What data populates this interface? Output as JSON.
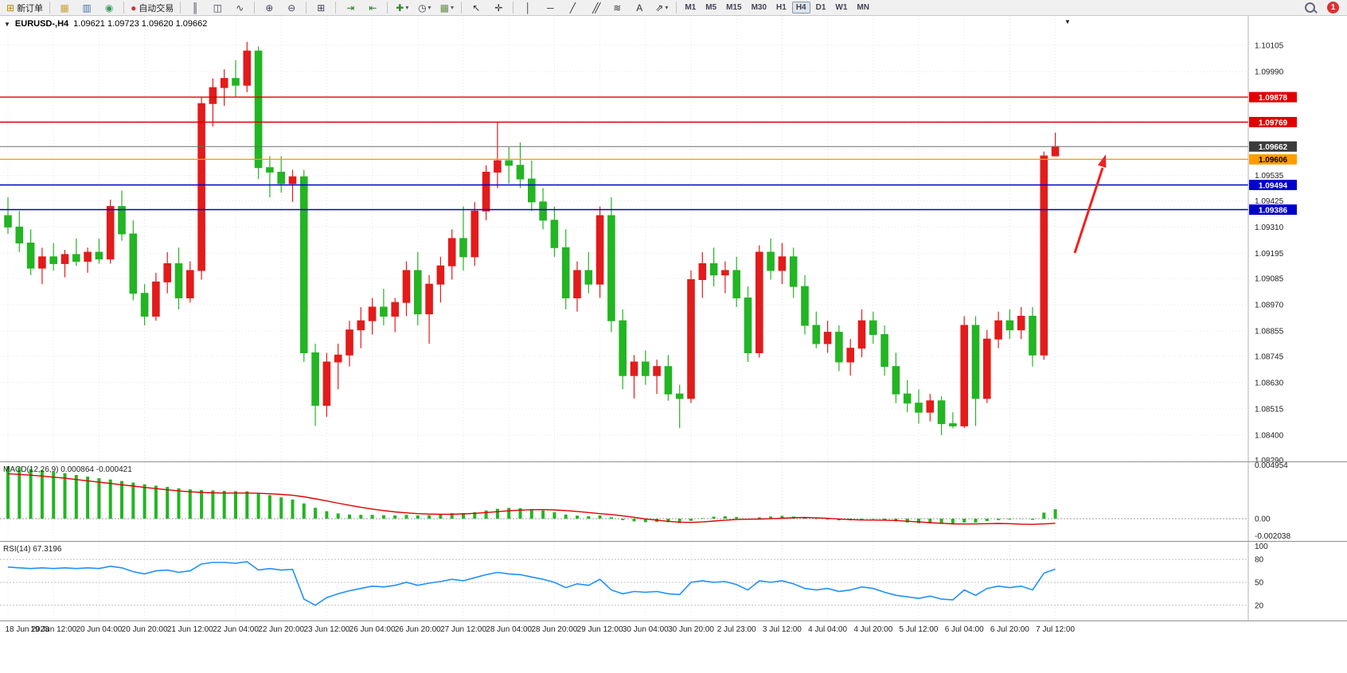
{
  "toolbar": {
    "notification_count": "1",
    "timeframes": [
      "M1",
      "M5",
      "M15",
      "M30",
      "H1",
      "H4",
      "D1",
      "W1",
      "MN"
    ],
    "active_timeframe": "H4",
    "groups": [
      {
        "items": [
          {
            "name": "new-order-button",
            "icon": "new-order-icon",
            "label": "新订单"
          }
        ]
      },
      {
        "items": [
          {
            "name": "charts-button",
            "icon": "new-chart-icon"
          },
          {
            "name": "profiles-button",
            "icon": "profiles-icon"
          },
          {
            "name": "data-window-button",
            "icon": "data-window-icon"
          }
        ]
      },
      {
        "items": [
          {
            "name": "autotrading-button",
            "icon": "autotrading-icon",
            "label": "自动交易"
          }
        ]
      },
      {
        "items": [
          {
            "name": "bar-chart-button",
            "icon": "bar-chart-icon"
          },
          {
            "name": "candlestick-chart-button",
            "icon": "candlestick-chart-icon"
          },
          {
            "name": "line-chart-button",
            "icon": "line-chart-icon"
          }
        ]
      },
      {
        "items": [
          {
            "name": "zoom-in-button",
            "icon": "zoom-in-icon"
          },
          {
            "name": "zoom-out-button",
            "icon": "zoom-out-icon"
          }
        ]
      },
      {
        "items": [
          {
            "name": "tile-windows-button",
            "icon": "tile-windows-icon"
          }
        ]
      },
      {
        "items": [
          {
            "name": "auto-scroll-button",
            "icon": "auto-scroll-icon"
          },
          {
            "name": "chart-shift-button",
            "icon": "chart-shift-icon"
          }
        ]
      },
      {
        "items": [
          {
            "name": "indicators-button",
            "icon": "indicators-icon",
            "caret": true
          },
          {
            "name": "periods-button",
            "icon": "periods-icon",
            "caret": true
          },
          {
            "name": "templates-button",
            "icon": "templates-icon",
            "caret": true
          }
        ]
      },
      {
        "items": [
          {
            "name": "cursor-button",
            "icon": "cursor-icon"
          },
          {
            "name": "crosshair-button",
            "icon": "crosshair-icon"
          }
        ]
      },
      {
        "items": [
          {
            "name": "vertical-line-button",
            "icon": "vertical-line-icon"
          },
          {
            "name": "horizontal-line-button",
            "icon": "horizontal-line-icon"
          },
          {
            "name": "trendline-button",
            "icon": "trendline-icon"
          },
          {
            "name": "channel-button",
            "icon": "channel-icon"
          },
          {
            "name": "fibonacci-button",
            "icon": "fibonacci-icon"
          },
          {
            "name": "text-button",
            "icon": "text-icon"
          },
          {
            "name": "arrows-button",
            "icon": "arrows-icon",
            "caret": true
          }
        ]
      }
    ]
  },
  "chart": {
    "title": "EURUSD-,H4",
    "ohlc": "1.09621 1.09723 1.09620 1.09662",
    "colors": {
      "up": "#e31b1b",
      "down": "#23b523",
      "arrow": "#f22020",
      "grid": "#e6e6e6"
    },
    "levels": [
      {
        "price": "1.09878",
        "value": 1.09878,
        "line": "#e00000",
        "badge": "#e00000",
        "text": "#ffffff",
        "width": 1.4,
        "name": "resistance-line-1"
      },
      {
        "price": "1.09769",
        "value": 1.09769,
        "line": "#e00000",
        "badge": "#e00000",
        "text": "#ffffff",
        "width": 1.4,
        "name": "resistance-line-2"
      },
      {
        "price": "1.09662",
        "value": 1.09662,
        "line": "#6b6b6b",
        "badge": "#3c3c3c",
        "text": "#ffffff",
        "width": 1,
        "name": "current-price-line"
      },
      {
        "price": "1.09606",
        "value": 1.09606,
        "line": "#ff9d00",
        "badge": "#ff9d00",
        "text": "#000000",
        "width": 1.4,
        "name": "pivot-line-orange"
      },
      {
        "price": "1.09494",
        "value": 1.09494,
        "line": "#0000cc",
        "badge": "#0000cc",
        "text": "#ffffff",
        "width": 1.4,
        "name": "support-line-1"
      },
      {
        "price": "1.09386",
        "value": 1.09386,
        "line": "#0000cc",
        "badge": "#0000cc",
        "text": "#ffffff",
        "width": 1.4,
        "name": "support-line-2"
      }
    ],
    "price_axis": {
      "ticks": [
        {
          "v": 1.10105,
          "t": "1.10105",
          "show": true
        },
        {
          "v": 1.0999,
          "t": "1.09990",
          "show": true
        },
        {
          "v": 1.0988,
          "t": "1.09880",
          "show": false
        },
        {
          "v": 1.09765,
          "t": "1.09765",
          "show": false
        },
        {
          "v": 1.0965,
          "t": "1.09650",
          "show": false
        },
        {
          "v": 1.09535,
          "t": "1.09535",
          "show": true
        },
        {
          "v": 1.09425,
          "t": "1.09425",
          "show": true
        },
        {
          "v": 1.0931,
          "t": "1.09310",
          "show": true
        },
        {
          "v": 1.09195,
          "t": "1.09195",
          "show": true
        },
        {
          "v": 1.09085,
          "t": "1.09085",
          "show": true
        },
        {
          "v": 1.0897,
          "t": "1.08970",
          "show": true
        },
        {
          "v": 1.08855,
          "t": "1.08855",
          "show": true
        },
        {
          "v": 1.08745,
          "t": "1.08745",
          "show": true
        },
        {
          "v": 1.0863,
          "t": "1.08630",
          "show": true
        },
        {
          "v": 1.08515,
          "t": "1.08515",
          "show": true
        },
        {
          "v": 1.084,
          "t": "1.08400",
          "show": true
        },
        {
          "v": 1.0829,
          "t": "1.08290",
          "show": true
        }
      ]
    },
    "time_axis": [
      "18 Jun 2023",
      "19 Jun 12:00",
      "20 Jun 04:00",
      "20 Jun 20:00",
      "21 Jun 12:00",
      "22 Jun 04:00",
      "22 Jun 20:00",
      "23 Jun 12:00",
      "26 Jun 04:00",
      "26 Jun 20:00",
      "27 Jun 12:00",
      "28 Jun 04:00",
      "28 Jun 20:00",
      "29 Jun 12:00",
      "30 Jun 04:00",
      "30 Jun 20:00",
      "2 Jul 23:00",
      "3 Jul 12:00",
      "4 Jul 04:00",
      "4 Jul 20:00",
      "5 Jul 12:00",
      "6 Jul 04:00",
      "6 Jul 20:00",
      "7 Jul 12:00"
    ]
  },
  "chart_data": {
    "type": "candlestick",
    "symbol_timeframe": "EURUSD-,H4",
    "current_bar_ohlc": [
      1.09621,
      1.09723,
      1.0962,
      1.09662
    ],
    "candles_ohlc": [
      [
        1.0936,
        1.0944,
        1.0928,
        1.0931
      ],
      [
        1.0931,
        1.0938,
        1.092,
        1.0924
      ],
      [
        1.0924,
        1.093,
        1.091,
        1.0913
      ],
      [
        1.0913,
        1.0922,
        1.0906,
        1.0918
      ],
      [
        1.0918,
        1.0924,
        1.0912,
        1.0915
      ],
      [
        1.0915,
        1.0921,
        1.0909,
        1.0919
      ],
      [
        1.0919,
        1.0926,
        1.0914,
        1.0916
      ],
      [
        1.0916,
        1.0922,
        1.0911,
        1.092
      ],
      [
        1.092,
        1.0926,
        1.0915,
        1.0917
      ],
      [
        1.0917,
        1.0943,
        1.0915,
        1.094
      ],
      [
        1.094,
        1.0947,
        1.0925,
        1.0928
      ],
      [
        1.0928,
        1.0934,
        1.0899,
        1.0902
      ],
      [
        1.0902,
        1.0906,
        1.0888,
        1.0892
      ],
      [
        1.0892,
        1.0911,
        1.089,
        1.0907
      ],
      [
        1.0907,
        1.092,
        1.0902,
        1.0915
      ],
      [
        1.0915,
        1.0922,
        1.0895,
        1.09
      ],
      [
        1.09,
        1.0916,
        1.0898,
        1.0912
      ],
      [
        1.0912,
        1.0988,
        1.0908,
        1.0985
      ],
      [
        1.0985,
        1.0996,
        1.0975,
        1.0992
      ],
      [
        1.0992,
        1.1,
        1.0984,
        1.0996
      ],
      [
        1.0996,
        1.1004,
        1.0988,
        1.0993
      ],
      [
        1.0993,
        1.1012,
        1.099,
        1.1008
      ],
      [
        1.1008,
        1.101,
        1.0952,
        1.0957
      ],
      [
        1.0957,
        1.0962,
        1.0944,
        1.0955
      ],
      [
        1.0955,
        1.0962,
        1.0946,
        1.095
      ],
      [
        1.095,
        1.0956,
        1.0942,
        1.0953
      ],
      [
        1.0953,
        1.0956,
        1.0872,
        1.0876
      ],
      [
        1.0876,
        1.088,
        1.0844,
        1.0853
      ],
      [
        1.0853,
        1.0876,
        1.0848,
        1.0872
      ],
      [
        1.0872,
        1.088,
        1.086,
        1.0875
      ],
      [
        1.0875,
        1.089,
        1.087,
        1.0886
      ],
      [
        1.0886,
        1.0896,
        1.0878,
        1.089
      ],
      [
        1.089,
        1.09,
        1.0884,
        1.0896
      ],
      [
        1.0896,
        1.0904,
        1.0888,
        1.0892
      ],
      [
        1.0892,
        1.09,
        1.0885,
        1.0898
      ],
      [
        1.0898,
        1.0916,
        1.0892,
        1.0912
      ],
      [
        1.0912,
        1.092,
        1.0888,
        1.0893
      ],
      [
        1.0893,
        1.091,
        1.088,
        1.0906
      ],
      [
        1.0906,
        1.0918,
        1.0898,
        1.0914
      ],
      [
        1.0914,
        1.093,
        1.0908,
        1.0926
      ],
      [
        1.0926,
        1.094,
        1.0912,
        1.0918
      ],
      [
        1.0918,
        1.0942,
        1.0914,
        1.0938
      ],
      [
        1.0938,
        1.0958,
        1.0934,
        1.0955
      ],
      [
        1.0955,
        1.0977,
        1.0948,
        1.096
      ],
      [
        1.096,
        1.0966,
        1.095,
        1.0958
      ],
      [
        1.0958,
        1.0968,
        1.0948,
        1.0952
      ],
      [
        1.0952,
        1.096,
        1.0938,
        1.0942
      ],
      [
        1.0942,
        1.0948,
        1.093,
        1.0934
      ],
      [
        1.0934,
        1.094,
        1.0918,
        1.0922
      ],
      [
        1.0922,
        1.093,
        1.0895,
        1.09
      ],
      [
        1.09,
        1.0916,
        1.0894,
        1.0912
      ],
      [
        1.0912,
        1.092,
        1.0902,
        1.0906
      ],
      [
        1.0906,
        1.094,
        1.09,
        1.0936
      ],
      [
        1.0936,
        1.0944,
        1.0885,
        1.089
      ],
      [
        1.089,
        1.0895,
        1.086,
        1.0866
      ],
      [
        1.0866,
        1.0875,
        1.0856,
        1.0872
      ],
      [
        1.0872,
        1.0877,
        1.0862,
        1.0866
      ],
      [
        1.0866,
        1.0873,
        1.0858,
        1.087
      ],
      [
        1.087,
        1.0875,
        1.0855,
        1.0858
      ],
      [
        1.0858,
        1.0862,
        1.0843,
        1.0856
      ],
      [
        1.0856,
        1.0912,
        1.0854,
        1.0908
      ],
      [
        1.0908,
        1.092,
        1.09,
        1.0915
      ],
      [
        1.0915,
        1.0922,
        1.0905,
        1.091
      ],
      [
        1.091,
        1.0916,
        1.0902,
        1.0912
      ],
      [
        1.0912,
        1.0918,
        1.0896,
        1.09
      ],
      [
        1.09,
        1.0905,
        1.0872,
        1.0876
      ],
      [
        1.0876,
        1.0923,
        1.0874,
        1.092
      ],
      [
        1.092,
        1.0926,
        1.0908,
        1.0912
      ],
      [
        1.0912,
        1.0924,
        1.0906,
        1.0918
      ],
      [
        1.0918,
        1.0922,
        1.09,
        1.0905
      ],
      [
        1.0905,
        1.091,
        1.0884,
        1.0888
      ],
      [
        1.0888,
        1.0894,
        1.0878,
        1.088
      ],
      [
        1.088,
        1.089,
        1.0876,
        1.0885
      ],
      [
        1.0885,
        1.0888,
        1.0868,
        1.0872
      ],
      [
        1.0872,
        1.0882,
        1.0866,
        1.0878
      ],
      [
        1.0878,
        1.0895,
        1.0874,
        1.089
      ],
      [
        1.089,
        1.0894,
        1.088,
        1.0884
      ],
      [
        1.0884,
        1.0888,
        1.0866,
        1.087
      ],
      [
        1.087,
        1.0876,
        1.0854,
        1.0858
      ],
      [
        1.0858,
        1.0864,
        1.085,
        1.0854
      ],
      [
        1.0854,
        1.086,
        1.0845,
        1.085
      ],
      [
        1.085,
        1.0858,
        1.0846,
        1.0855
      ],
      [
        1.0855,
        1.0857,
        1.084,
        1.0845
      ],
      [
        1.0845,
        1.085,
        1.0843,
        1.0844
      ],
      [
        1.0844,
        1.0892,
        1.0843,
        1.0888
      ],
      [
        1.0888,
        1.0892,
        1.0844,
        1.0856
      ],
      [
        1.0856,
        1.0886,
        1.0854,
        1.0882
      ],
      [
        1.0882,
        1.0894,
        1.0878,
        1.089
      ],
      [
        1.089,
        1.0895,
        1.0882,
        1.0886
      ],
      [
        1.0886,
        1.0896,
        1.0882,
        1.0892
      ],
      [
        1.0892,
        1.0896,
        1.087,
        1.0875
      ],
      [
        1.0875,
        1.0964,
        1.0873,
        1.09621
      ],
      [
        1.09621,
        1.09723,
        1.0962,
        1.09662
      ]
    ],
    "macd": {
      "label": "MACD(12,26,9)",
      "main_value": "0.000864",
      "signal_value": "-0.000421",
      "axis_labels": [
        "0.004954",
        "0.00",
        "-0.002038"
      ],
      "histogram": [
        0.0048,
        0.00468,
        0.00455,
        0.00442,
        0.00428,
        0.00415,
        0.004,
        0.00385,
        0.0037,
        0.00358,
        0.00345,
        0.0033,
        0.00315,
        0.00302,
        0.0029,
        0.00278,
        0.00268,
        0.00262,
        0.00258,
        0.00255,
        0.00252,
        0.0025,
        0.00235,
        0.00215,
        0.00195,
        0.00175,
        0.0014,
        0.001,
        0.00068,
        0.00048,
        0.00038,
        0.00035,
        0.00035,
        0.00032,
        0.0003,
        0.00035,
        0.0003,
        0.00032,
        0.0004,
        0.0005,
        0.00052,
        0.0006,
        0.00075,
        0.0009,
        0.00098,
        0.00096,
        0.00088,
        0.00075,
        0.00058,
        0.00038,
        0.00028,
        0.00022,
        0.0003,
        0.00012,
        -0.00012,
        -0.00025,
        -0.00032,
        -0.0003,
        -0.00032,
        -0.0004,
        -0.0002,
        5e-05,
        0.00018,
        0.00022,
        0.00015,
        0.0,
        0.00012,
        0.0002,
        0.00026,
        0.0002,
        8e-05,
        -5e-05,
        -8e-05,
        -0.00015,
        -0.00015,
        -8e-05,
        -5e-05,
        -0.00015,
        -0.00025,
        -0.00035,
        -0.00042,
        -0.00042,
        -0.00048,
        -0.00052,
        -0.00035,
        -0.00035,
        -0.00022,
        -0.00012,
        -8e-05,
        -2e-05,
        -0.0001,
        0.00055,
        0.000864
      ],
      "signal": [
        0.0041,
        0.00405,
        0.00398,
        0.0039,
        0.0038,
        0.0037,
        0.00358,
        0.00346,
        0.00334,
        0.00322,
        0.0031,
        0.00298,
        0.00286,
        0.00275,
        0.00264,
        0.00254,
        0.00246,
        0.0024,
        0.00236,
        0.00234,
        0.00234,
        0.00234,
        0.00232,
        0.00228,
        0.00222,
        0.00214,
        0.002,
        0.00182,
        0.00162,
        0.00142,
        0.00122,
        0.00104,
        0.00088,
        0.00074,
        0.00062,
        0.00053,
        0.00046,
        0.00042,
        0.0004,
        0.00041,
        0.00044,
        0.00049,
        0.00056,
        0.00064,
        0.00072,
        0.00078,
        0.00082,
        0.00083,
        0.0008,
        0.00074,
        0.00066,
        0.00056,
        0.00046,
        0.00038,
        0.00026,
        0.00012,
        -2e-05,
        -0.00014,
        -0.00024,
        -0.00032,
        -0.00034,
        -0.0003,
        -0.00022,
        -0.00014,
        -8e-05,
        -5e-05,
        -4e-05,
        -1e-05,
        4e-05,
        9e-05,
        0.00011,
        8e-05,
        3e-05,
        -3e-05,
        -9e-05,
        -0.00012,
        -0.00013,
        -0.00014,
        -0.00017,
        -0.00023,
        -0.0003,
        -0.00036,
        -0.00042,
        -0.00047,
        -0.00049,
        -0.00048,
        -0.00046,
        -0.00044,
        -0.00046,
        -0.0005,
        -0.00052,
        -0.00048,
        -0.000421
      ]
    },
    "rsi": {
      "label": "RSI(14)",
      "value": "67.3196",
      "levels": [
        80,
        50,
        20
      ],
      "axis_labels": [
        {
          "t": "100",
          "v": 100
        },
        {
          "t": "80",
          "v": 80
        },
        {
          "t": "50",
          "v": 50
        },
        {
          "t": "20",
          "v": 20
        }
      ],
      "values": [
        70,
        69,
        68,
        69,
        68,
        69,
        68,
        69,
        68,
        71,
        69,
        64,
        61,
        65,
        66,
        63,
        65,
        74,
        76,
        76,
        75,
        77,
        66,
        68,
        66,
        67,
        28,
        20,
        30,
        35,
        39,
        42,
        45,
        44,
        46,
        50,
        46,
        49,
        51,
        54,
        52,
        56,
        60,
        63,
        61,
        60,
        57,
        54,
        50,
        43,
        48,
        46,
        54,
        40,
        35,
        38,
        37,
        38,
        35,
        34,
        50,
        52,
        50,
        51,
        47,
        40,
        52,
        50,
        52,
        48,
        42,
        40,
        42,
        38,
        40,
        44,
        42,
        37,
        33,
        31,
        29,
        32,
        28,
        27,
        40,
        33,
        42,
        45,
        43,
        45,
        40,
        62,
        67.32
      ]
    }
  }
}
